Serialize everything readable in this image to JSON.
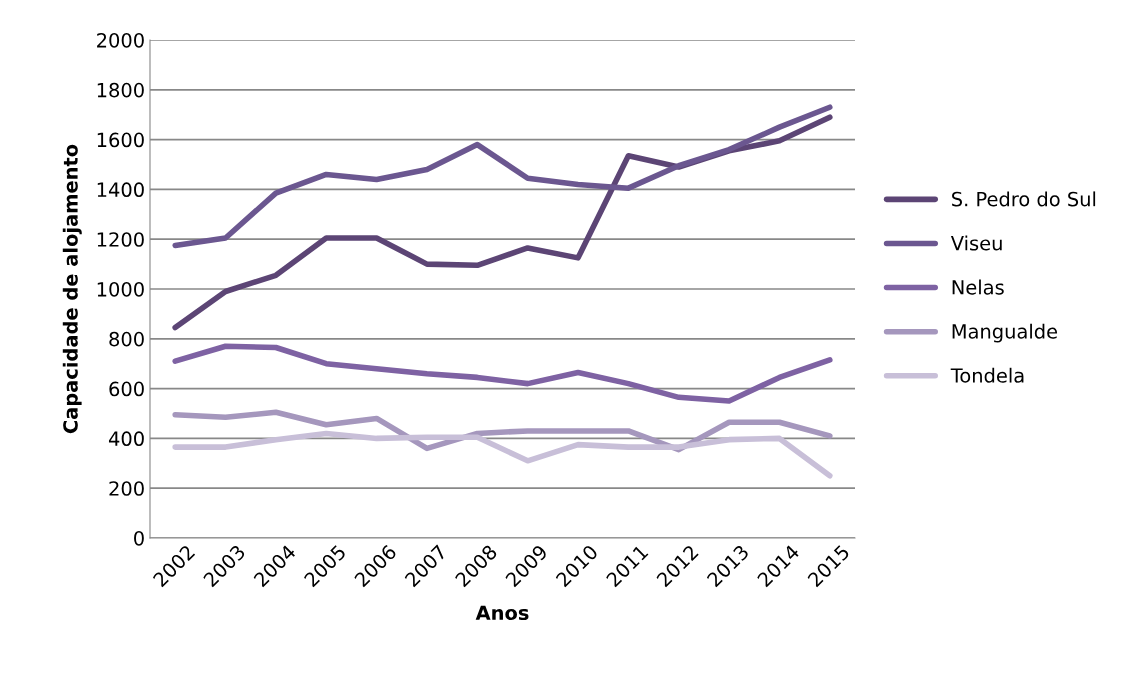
{
  "chart_data": {
    "type": "line",
    "xlabel": "Anos",
    "ylabel": "Capacidade de alojamento",
    "categories": [
      "2002",
      "2003",
      "2004",
      "2005",
      "2006",
      "2007",
      "2008",
      "2009",
      "2010",
      "2011",
      "2012",
      "2013",
      "2014",
      "2015"
    ],
    "series": [
      {
        "name": "S. Pedro do Sul",
        "color": "#5c4575",
        "values": [
          845,
          990,
          1055,
          1205,
          1205,
          1100,
          1095,
          1165,
          1125,
          1535,
          1490,
          1555,
          1595,
          1690
        ]
      },
      {
        "name": "Viseu",
        "color": "#6b5790",
        "values": [
          1175,
          1205,
          1385,
          1460,
          1440,
          1480,
          1580,
          1445,
          1420,
          1405,
          1495,
          1560,
          1650,
          1730
        ]
      },
      {
        "name": "Nelas",
        "color": "#7e62a3",
        "values": [
          710,
          770,
          765,
          700,
          680,
          660,
          645,
          620,
          665,
          620,
          565,
          550,
          645,
          715
        ]
      },
      {
        "name": "Mangualde",
        "color": "#a597bd",
        "values": [
          495,
          485,
          505,
          455,
          480,
          360,
          420,
          430,
          430,
          430,
          355,
          465,
          465,
          410
        ]
      },
      {
        "name": "Tondela",
        "color": "#c8bfd8",
        "values": [
          365,
          365,
          395,
          420,
          400,
          405,
          405,
          310,
          375,
          365,
          365,
          395,
          400,
          250
        ]
      }
    ],
    "ylim": [
      0,
      2000
    ],
    "yticks": [
      0,
      200,
      400,
      600,
      800,
      1000,
      1200,
      1400,
      1600,
      1800,
      2000
    ],
    "grid": "y",
    "legend": "right",
    "marker": "none",
    "line_style": "solid"
  }
}
